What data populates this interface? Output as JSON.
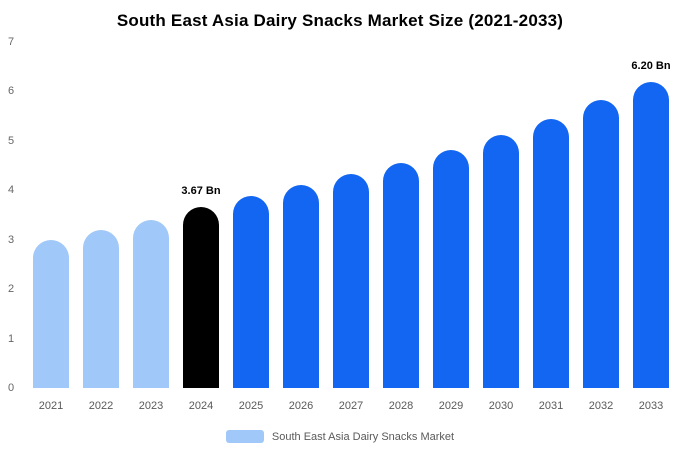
{
  "chart_data": {
    "type": "bar",
    "title": "South East Asia Dairy Snacks Market Size (2021-2033)",
    "categories": [
      "2021",
      "2022",
      "2023",
      "2024",
      "2025",
      "2026",
      "2027",
      "2028",
      "2029",
      "2030",
      "2031",
      "2032",
      "2033"
    ],
    "values": [
      3.0,
      3.2,
      3.4,
      3.67,
      3.88,
      4.1,
      4.32,
      4.56,
      4.82,
      5.12,
      5.44,
      5.82,
      6.2
    ],
    "bar_colors": [
      "#A0C8F8",
      "#A0C8F8",
      "#A0C8F8",
      "#000000",
      "#1266F1",
      "#1266F1",
      "#1266F1",
      "#1266F1",
      "#1266F1",
      "#1266F1",
      "#1266F1",
      "#1266F1",
      "#1266F1"
    ],
    "annotations": [
      {
        "index": 3,
        "text": "3.67 Bn"
      },
      {
        "index": 12,
        "text": "6.20 Bn"
      }
    ],
    "xlabel": "",
    "ylabel": "",
    "ylim": [
      0,
      7
    ],
    "yticks": [
      0,
      1,
      2,
      3,
      4,
      5,
      6,
      7
    ],
    "grid": false,
    "legend_position": "bottom"
  },
  "legend": {
    "label": "South East Asia Dairy Snacks Market",
    "swatch_color": "#A0C8F8"
  },
  "colors": {
    "historical_bar": "#A0C8F8",
    "base_year_bar": "#000000",
    "forecast_bar": "#1266F1",
    "axis_text": "#666666",
    "background": "#ffffff"
  }
}
